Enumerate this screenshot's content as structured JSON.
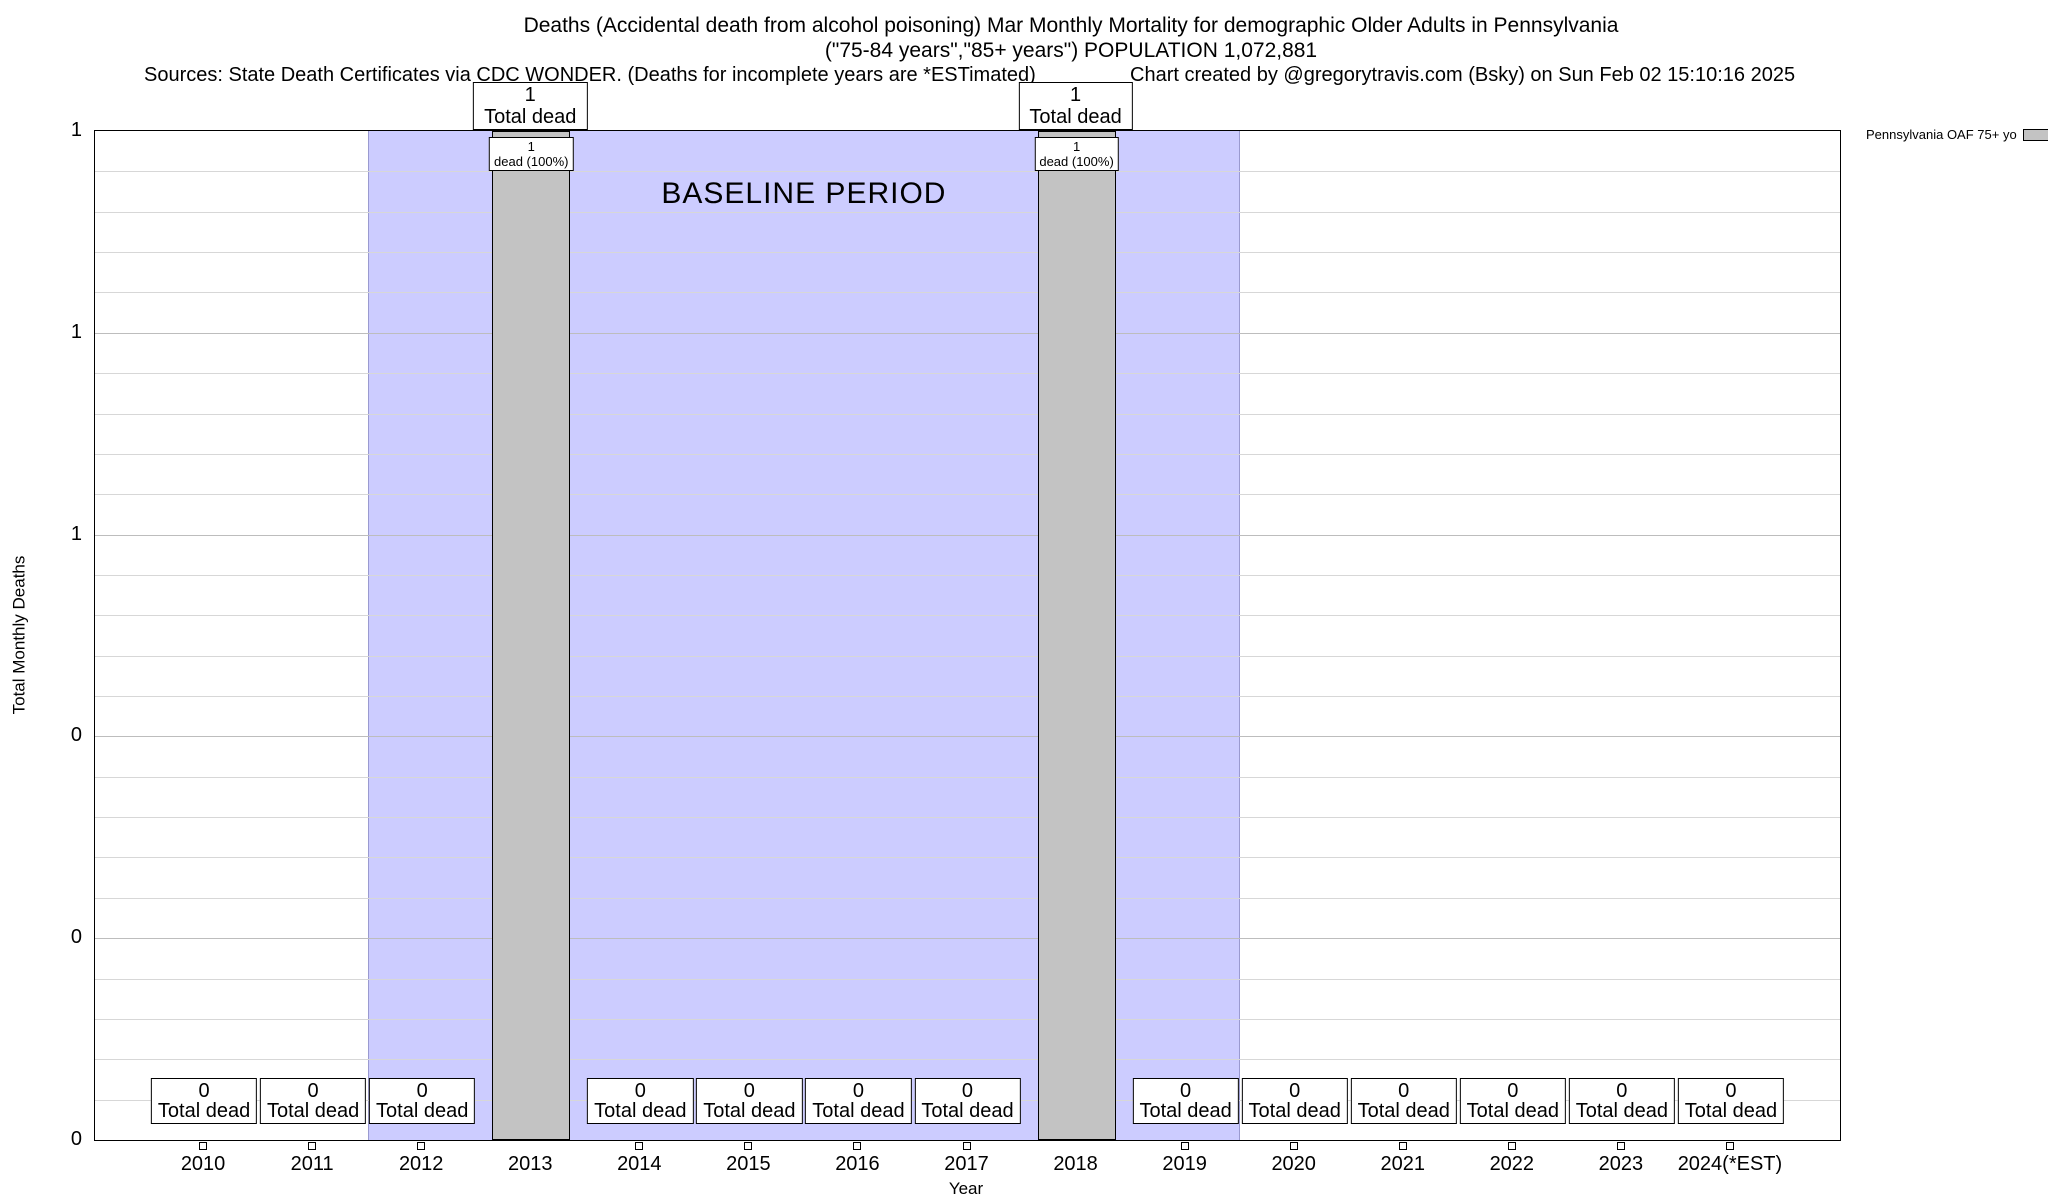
{
  "header": {
    "title_line1": "Deaths (Accidental death from alcohol poisoning) Mar Monthly Mortality for demographic Older Adults in Pennsylvania",
    "title_line2": "(\"75-84 years\",\"85+ years\") POPULATION 1,072,881",
    "sources": "Sources: State Death Certificates via CDC WONDER. (Deaths for incomplete years are *ESTimated)",
    "credit": "Chart created by @gregorytravis.com (Bsky) on Sun Feb 02 15:10:16 2025"
  },
  "chart_data": {
    "type": "bar",
    "title": "Deaths (Accidental death from alcohol poisoning) Mar Monthly Mortality for demographic Older Adults in Pennsylvania",
    "subtitle": "(\"75-84 years\",\"85+ years\") POPULATION 1,072,881",
    "xlabel": "Year",
    "ylabel": "Total Monthly Deaths",
    "ylim": [
      0,
      1
    ],
    "yticks": [
      0,
      0.2,
      0.4,
      0.6,
      0.8,
      1.0
    ],
    "ytick_labels_top_down": [
      "1",
      "1",
      "1",
      "0",
      "0",
      "0"
    ],
    "grid": "horizontal minor gridlines, 25 divisions",
    "minor_grid_divisions": 25,
    "categories": [
      "2010",
      "2011",
      "2012",
      "2013",
      "2014",
      "2015",
      "2016",
      "2017",
      "2018",
      "2019",
      "2020",
      "2021",
      "2022",
      "2023",
      "2024(*EST)"
    ],
    "values": [
      0,
      0,
      0,
      1,
      0,
      0,
      0,
      0,
      1,
      0,
      0,
      0,
      0,
      0,
      0
    ],
    "bar_value_labels": [
      "0",
      "0",
      "0",
      "1",
      "0",
      "0",
      "0",
      "0",
      "1",
      "0",
      "0",
      "0",
      "0",
      "0",
      "0"
    ],
    "annotation_total": "Total dead",
    "annotation_pct": "dead (100%)",
    "baseline": {
      "label": "BASELINE PERIOD",
      "from_year": "2012",
      "to_year": "2019"
    },
    "legend": [
      {
        "label": "Pennsylvania OAF 75+ yo",
        "swatch_color": "#c3c3c3"
      }
    ],
    "colors": {
      "baseline_fill": "#ccccff",
      "baseline_edge": "#9a9ad0",
      "bar_fill": "#c3c3c3",
      "grid_minor": "#d7d7d7",
      "grid_major": "#bdbdbd"
    }
  }
}
